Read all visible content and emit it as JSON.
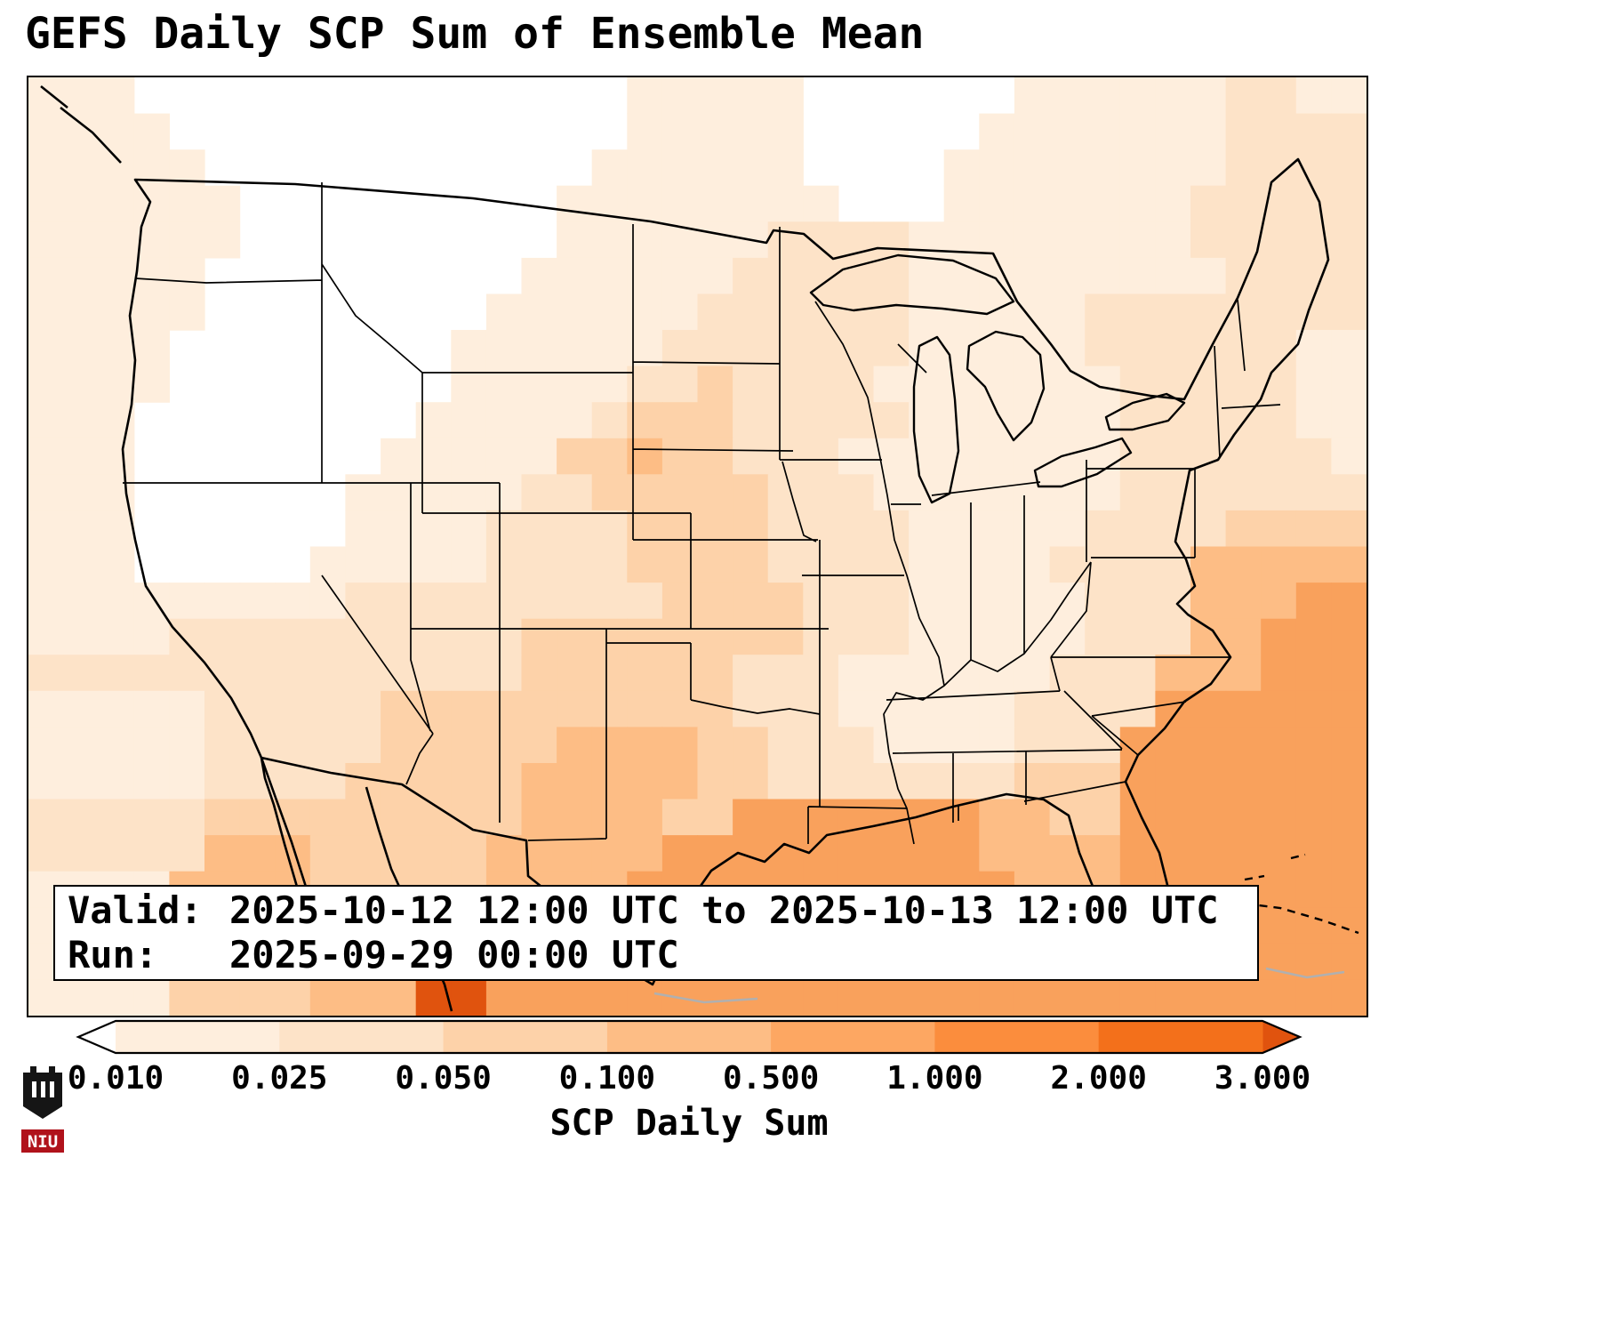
{
  "title": "GEFS Daily SCP Sum of Ensemble Mean",
  "info_box": {
    "valid_label": "Valid:",
    "valid_value": "2025-10-12 12:00 UTC to 2025-10-13 12:00 UTC",
    "run_label": "Run:",
    "run_value": "2025-09-29 00:00 UTC"
  },
  "colorbar": {
    "label": "SCP Daily Sum",
    "ticks": [
      "0.010",
      "0.025",
      "0.050",
      "0.100",
      "0.500",
      "1.000",
      "2.000",
      "3.000"
    ],
    "segment_colors": [
      "#feeedd",
      "#fde3c8",
      "#fdd2a9",
      "#fdbd85",
      "#fda762",
      "#fb8d3d",
      "#f3701b"
    ],
    "under_color": "#ffffff",
    "over_color": "#e0530e",
    "extend": "both"
  },
  "logo": {
    "text": "NIU"
  },
  "chart_data": {
    "type": "heatmap",
    "title": "GEFS Daily SCP Sum of Ensemble Mean",
    "variable": "SCP Daily Sum",
    "region": "CONUS",
    "levels": [
      0.01,
      0.025,
      0.05,
      0.1,
      0.5,
      1.0,
      2.0,
      3.0
    ],
    "level_colors": [
      "#ffffff",
      "#feeedd",
      "#fde3c8",
      "#fdd2a9",
      "#fdbd85",
      "#f9a15c",
      "#fb8d3d",
      "#f3701b",
      "#e0530e"
    ],
    "legend_position": "bottom",
    "grid_cols": 38,
    "grid_rows": [
      "11100000000000000111110000001111112211",
      "11110000000000000111110000011111112222",
      "11111000000000001111110000111111112222",
      "11111100000000011111111000111111122222",
      "11111100000000011111122221111111122222",
      "11111000000000111111222221111111112222",
      "11111000000001111112222221111122222222",
      "11110000000011111122222221111122222211",
      "11110000000011111223222211111112222211",
      "11100000000111112333222221111112222211",
      "11100000001111133433222111111112222221",
      "11100000011111223333322211111112222222",
      "11100000011112222333322221111122223333",
      "11100000111112222333322221111222244444",
      "11111111122222222233332221111122244455",
      "11112222222222333333332221111122244555",
      "22222222222222333333222111111222444555",
      "11111222223333333333222111112222555555",
      "11111222223333344443322211112225555555",
      "11111222233333444443322222223335555555",
      "22222333333333444433555555544335555555",
      "22222444333334444455555555544445555555",
      "11114444333334444555555555554445555555",
      "11113333333334444555555555555556665555",
      "11112222333744445555555555555555555555",
      "11113333444885555555555555555555555555"
    ]
  }
}
